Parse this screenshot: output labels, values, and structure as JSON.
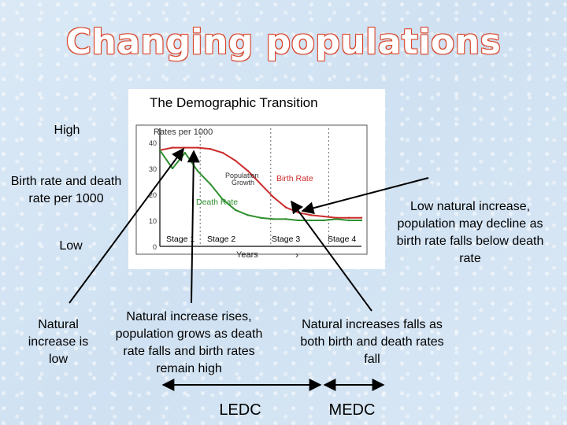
{
  "title": "Changing populations",
  "left_labels": {
    "high": "High",
    "axis": "Birth rate and death rate per 1000",
    "low": "Low"
  },
  "chart_data": {
    "type": "line",
    "title": "The Demographic Transition",
    "ylabel": "Rates per 1000",
    "xlabel": "Years",
    "ylim": [
      0,
      40
    ],
    "yticks": [
      0,
      10,
      20,
      30,
      40
    ],
    "x": [
      0,
      1,
      2,
      3,
      4,
      5,
      6,
      7,
      8,
      9,
      10,
      11,
      12,
      13,
      14,
      15,
      16
    ],
    "series": [
      {
        "name": "Birth Rate",
        "color": "#cc2b2b",
        "values": [
          37,
          38,
          38,
          38,
          37.5,
          36,
          33,
          29,
          24,
          19,
          15,
          13,
          12,
          11.5,
          11,
          11,
          11
        ]
      },
      {
        "name": "Death Rate",
        "color": "#2f8f2f",
        "values": [
          37,
          30,
          36,
          29,
          24,
          18,
          14,
          12,
          11,
          10.5,
          10.5,
          10,
          10,
          10,
          10.5,
          10,
          10
        ]
      }
    ],
    "stages": [
      "Stage 1",
      "Stage 2",
      "Stage 3",
      "Stage 4"
    ],
    "annotation": "Population Growth"
  },
  "callouts": {
    "stage1": "Natural increase is low",
    "stage2": "Natural increase rises, population grows as death rate falls and birth rates remain high",
    "stage3": "Natural increases falls as both birth and death rates fall",
    "stage4": "Low natural increase, population may decline as birth rate falls below death rate"
  },
  "bottom": {
    "ledc": "LEDC",
    "medc": "MEDC"
  }
}
